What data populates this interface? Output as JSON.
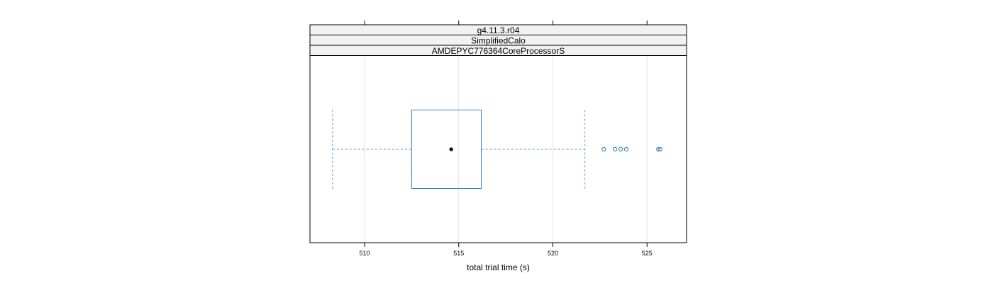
{
  "chart_data": {
    "type": "boxplot",
    "strips": [
      "g4.11.3.r04",
      "SimplifiedCalo",
      "AMDEPYC776364CoreProcessorS"
    ],
    "xlabel": "total trial time (s)",
    "ylabel": "",
    "xlim": [
      507.1,
      527.1
    ],
    "ticks": [
      510,
      515,
      520,
      525
    ],
    "tick_labels": [
      "510",
      "515",
      "520",
      "525"
    ],
    "grid": true,
    "box": {
      "whisker_low": 508.3,
      "q1": 512.5,
      "median": 514.6,
      "q3": 516.2,
      "whisker_high": 521.7
    },
    "outliers": [
      522.7,
      523.3,
      523.6,
      523.9,
      525.6,
      525.7
    ],
    "colors": {
      "box": "#0080ff",
      "box_line": "#2a7fb8",
      "whisker": "#4a9fd8",
      "median_dot": "#000000",
      "strip_bg": "#f2f2f2",
      "grid": "#e6e6e6"
    }
  }
}
